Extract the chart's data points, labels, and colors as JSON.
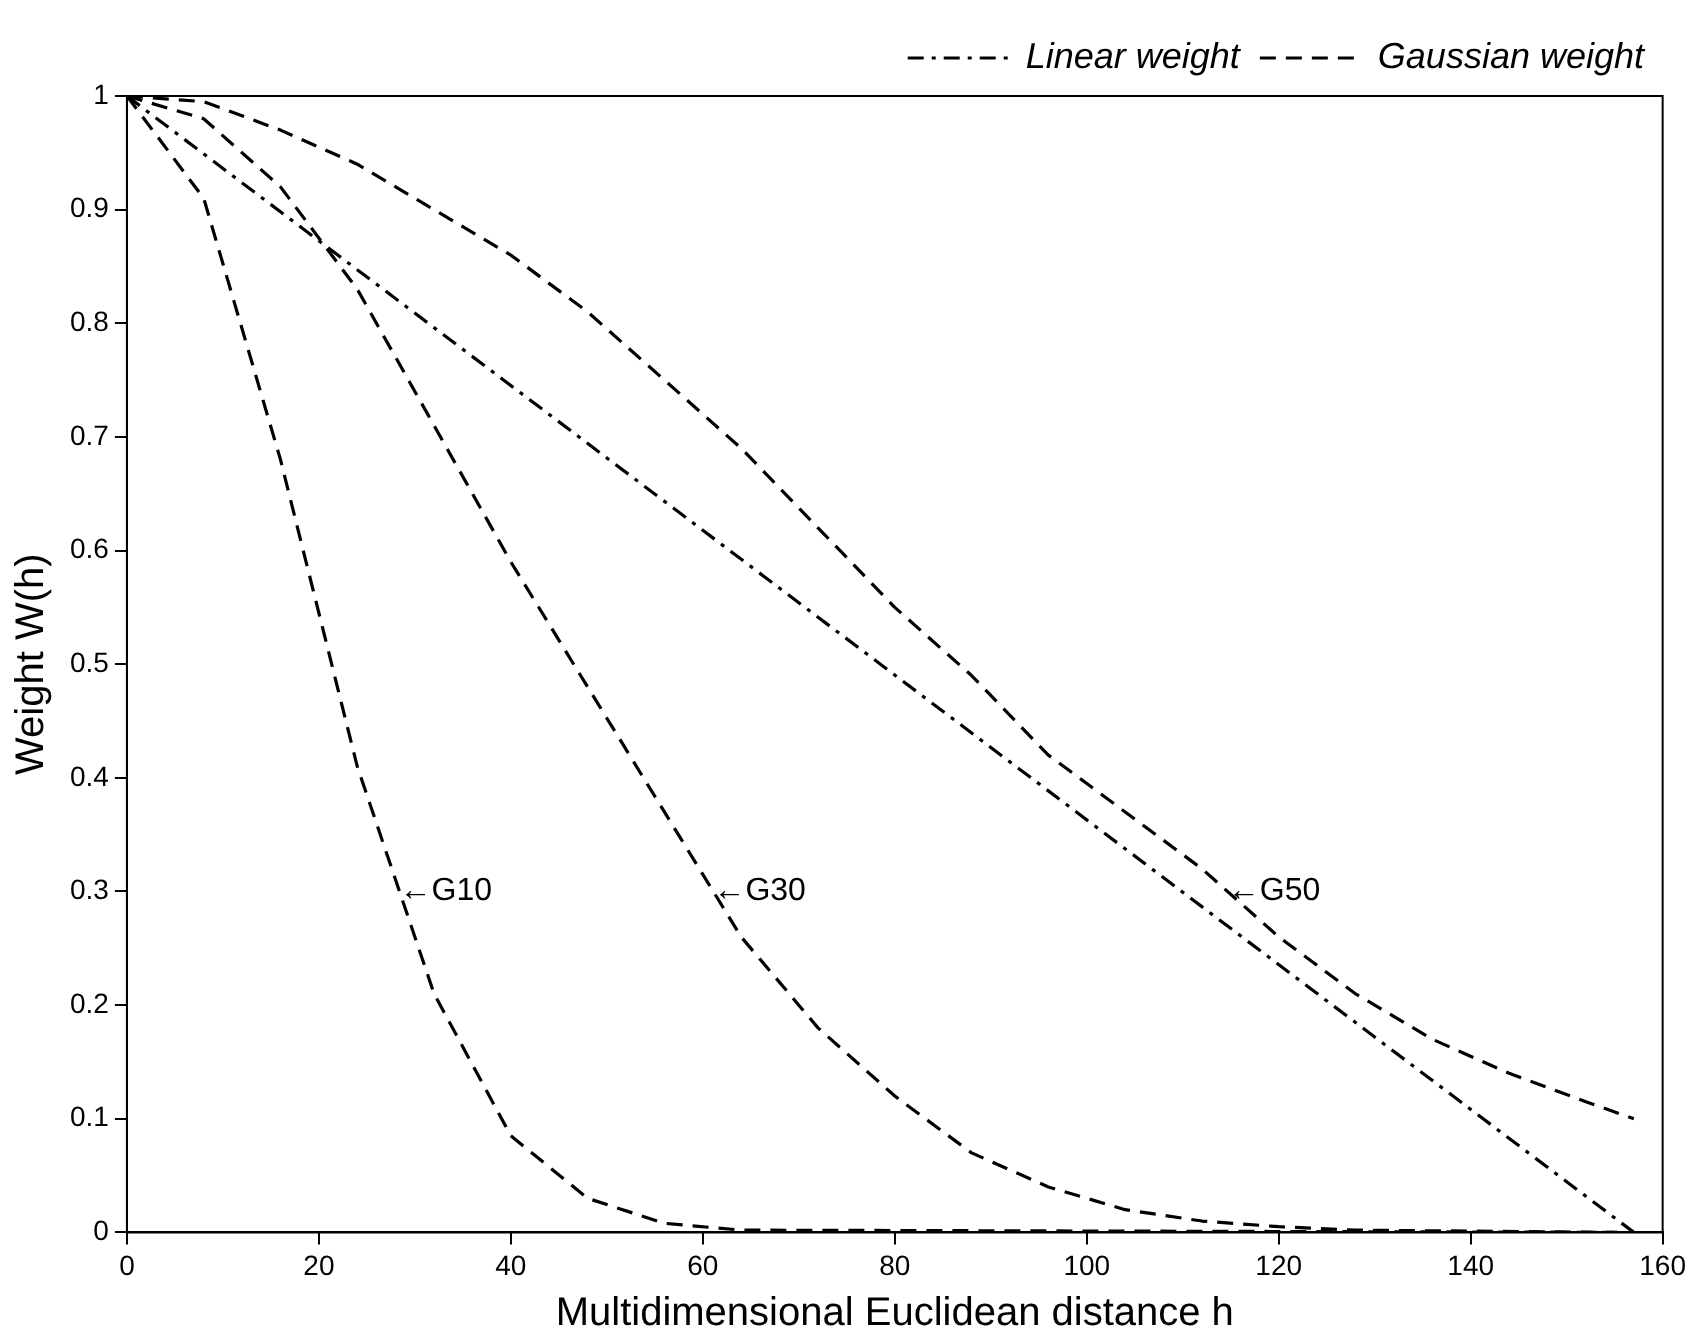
{
  "chart_data": {
    "type": "line",
    "xlabel": "Multidimensional Euclidean distance h",
    "ylabel": "Weight W(h)",
    "xlim": [
      0,
      160
    ],
    "xticks": [
      0,
      20,
      40,
      60,
      80,
      100,
      120,
      140,
      160
    ],
    "ylim": [
      0,
      1
    ],
    "yticks": [
      0,
      0.1,
      0.2,
      0.3,
      0.4,
      0.5,
      0.6,
      0.7,
      0.8,
      0.9,
      1
    ],
    "legend": "top right",
    "grid": false,
    "marker": "none",
    "series": [
      {
        "name": "Linear weight",
        "color": "#000000",
        "line_style": "dashdot",
        "x": [
          0,
          157
        ],
        "values": [
          1,
          0
        ]
      },
      {
        "name": "Gaussian weight",
        "color": "#000000",
        "line_style": "dashed",
        "x": [
          0,
          8,
          16,
          24,
          32,
          40,
          48,
          56,
          64,
          156
        ],
        "values": [
          1,
          0.91,
          0.68,
          0.41,
          0.21,
          0.085,
          0.03,
          0.008,
          0.002,
          0
        ]
      },
      {
        "color": "#000000",
        "line_style": "dashed",
        "x": [
          0,
          8,
          16,
          24,
          32,
          40,
          48,
          56,
          64,
          72,
          80,
          88,
          96,
          104,
          112,
          120,
          128,
          155
        ],
        "values": [
          1,
          0.98,
          0.92,
          0.83,
          0.71,
          0.59,
          0.48,
          0.37,
          0.26,
          0.18,
          0.12,
          0.07,
          0.04,
          0.02,
          0.01,
          0.005,
          0.002,
          0
        ]
      },
      {
        "color": "#000000",
        "line_style": "dashed",
        "x": [
          0,
          8,
          16,
          24,
          32,
          40,
          48,
          56,
          64,
          72,
          80,
          88,
          96,
          104,
          112,
          120,
          128,
          136,
          144,
          152,
          157
        ],
        "values": [
          1,
          0.995,
          0.97,
          0.94,
          0.9,
          0.86,
          0.81,
          0.75,
          0.69,
          0.62,
          0.55,
          0.49,
          0.42,
          0.37,
          0.32,
          0.26,
          0.21,
          0.17,
          0.14,
          0.115,
          0.1
        ]
      }
    ],
    "annotations": [
      {
        "text": "←G10",
        "x": 28.4,
        "y": 0.3
      },
      {
        "text": "←G30",
        "x": 61.1,
        "y": 0.3
      },
      {
        "text": "←G50",
        "x": 114.7,
        "y": 0.3
      }
    ]
  }
}
